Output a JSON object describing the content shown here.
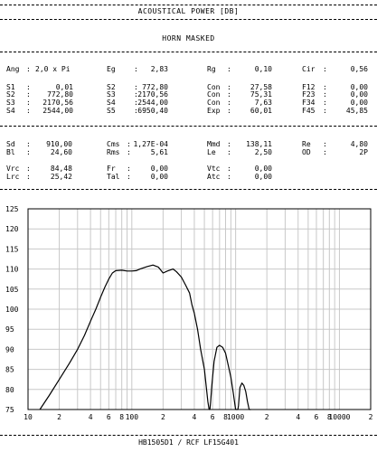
{
  "header": {
    "title": "ACOUSTICAL POWER [DB]",
    "subtitle": "HORN   MASKED"
  },
  "params": {
    "ang": {
      "label": "Ang",
      "value": "2,0 x Pi"
    },
    "block1": [
      [
        {
          "label": "Eg",
          "value": "2,83"
        },
        {
          "label": "Rg",
          "value": "0,10"
        },
        {
          "label": "Cir",
          "value": "0,56"
        }
      ]
    ],
    "block2": [
      [
        {
          "label": "S1",
          "value": "0,01"
        },
        {
          "label": "S2",
          "value": "772,80"
        },
        {
          "label": "Con",
          "value": "27,58"
        },
        {
          "label": "F12",
          "value": "0,00"
        }
      ],
      [
        {
          "label": "S2",
          "value": "772,80"
        },
        {
          "label": "S3",
          "value": "2170,56"
        },
        {
          "label": "Con",
          "value": "75,31"
        },
        {
          "label": "F23",
          "value": "0,00"
        }
      ],
      [
        {
          "label": "S3",
          "value": "2170,56"
        },
        {
          "label": "S4",
          "value": "2544,00"
        },
        {
          "label": "Con",
          "value": "7,63"
        },
        {
          "label": "F34",
          "value": "0,00"
        }
      ],
      [
        {
          "label": "S4",
          "value": "2544,00"
        },
        {
          "label": "S5",
          "value": "6950,40"
        },
        {
          "label": "Exp",
          "value": "60,01"
        },
        {
          "label": "F45",
          "value": "45,85"
        }
      ]
    ],
    "block3": [
      [
        {
          "label": "Sd",
          "value": "910,00"
        },
        {
          "label": "Cms",
          "value": "1,27E-04"
        },
        {
          "label": "Mmd",
          "value": "138,11"
        },
        {
          "label": "Re",
          "value": "4,80"
        }
      ],
      [
        {
          "label": "Bl",
          "value": "24,60"
        },
        {
          "label": "Rms",
          "value": "5,61"
        },
        {
          "label": "Le",
          "value": "2,50"
        },
        {
          "label": "OD",
          "value": "2P"
        }
      ]
    ],
    "block4": [
      [
        {
          "label": "Vrc",
          "value": "84,48"
        },
        {
          "label": "Fr",
          "value": "0,00"
        },
        {
          "label": "Vtc",
          "value": "0,00"
        }
      ],
      [
        {
          "label": "Lrc",
          "value": "25,42"
        },
        {
          "label": "Tal",
          "value": "0,00"
        },
        {
          "label": "Atc",
          "value": "0,00"
        }
      ]
    ]
  },
  "footer": {
    "text": "HB1505D1 / RCF LF15G401"
  },
  "chart_data": {
    "type": "line",
    "title": "",
    "xlabel": "",
    "ylabel": "",
    "x_scale": "log",
    "xlim": [
      10,
      20000
    ],
    "ylim": [
      75,
      125
    ],
    "y_ticks": [
      75,
      80,
      85,
      90,
      95,
      100,
      105,
      110,
      115,
      120,
      125
    ],
    "x_tick_labels": [
      {
        "x": 10,
        "label": "10"
      },
      {
        "x": 20,
        "label": "2"
      },
      {
        "x": 40,
        "label": "4"
      },
      {
        "x": 60,
        "label": "6"
      },
      {
        "x": 80,
        "label": "8"
      },
      {
        "x": 100,
        "label": "100"
      },
      {
        "x": 200,
        "label": "2"
      },
      {
        "x": 400,
        "label": "4"
      },
      {
        "x": 600,
        "label": "6"
      },
      {
        "x": 800,
        "label": "8"
      },
      {
        "x": 1000,
        "label": "1000"
      },
      {
        "x": 2000,
        "label": "2"
      },
      {
        "x": 4000,
        "label": "4"
      },
      {
        "x": 6000,
        "label": "6"
      },
      {
        "x": 8000,
        "label": "8"
      },
      {
        "x": 10000,
        "label": "10000"
      },
      {
        "x": 20000,
        "label": "2"
      }
    ],
    "grid": true,
    "series": [
      {
        "x": [
          13,
          16,
          20,
          25,
          30,
          35,
          40,
          45,
          50,
          55,
          60,
          65,
          70,
          80,
          90,
          100,
          110,
          120,
          140,
          160,
          180,
          200,
          220,
          250,
          270,
          300,
          330,
          360,
          380,
          400,
          430,
          460,
          500,
          520,
          540,
          555,
          565,
          575,
          590,
          620,
          660,
          700,
          750,
          800,
          850,
          900,
          950,
          1000,
          1030,
          1050,
          1065,
          1080,
          1100,
          1150,
          1200,
          1250,
          1300,
          1350,
          1380,
          1400
        ],
        "y": [
          75,
          78.5,
          82.5,
          86.5,
          90,
          93.5,
          97,
          100,
          103,
          105.5,
          107.5,
          109,
          109.6,
          109.7,
          109.5,
          109.5,
          109.6,
          110,
          110.6,
          111,
          110.5,
          109,
          109.5,
          110,
          109.3,
          108,
          106,
          104,
          101,
          99,
          95,
          90,
          85,
          81,
          77,
          75,
          75,
          77,
          81,
          87,
          90.5,
          91,
          90.5,
          89,
          86,
          83,
          79,
          75,
          75,
          75,
          76,
          78,
          80.5,
          81.6,
          81,
          79.5,
          77,
          75,
          75,
          75
        ]
      }
    ]
  }
}
